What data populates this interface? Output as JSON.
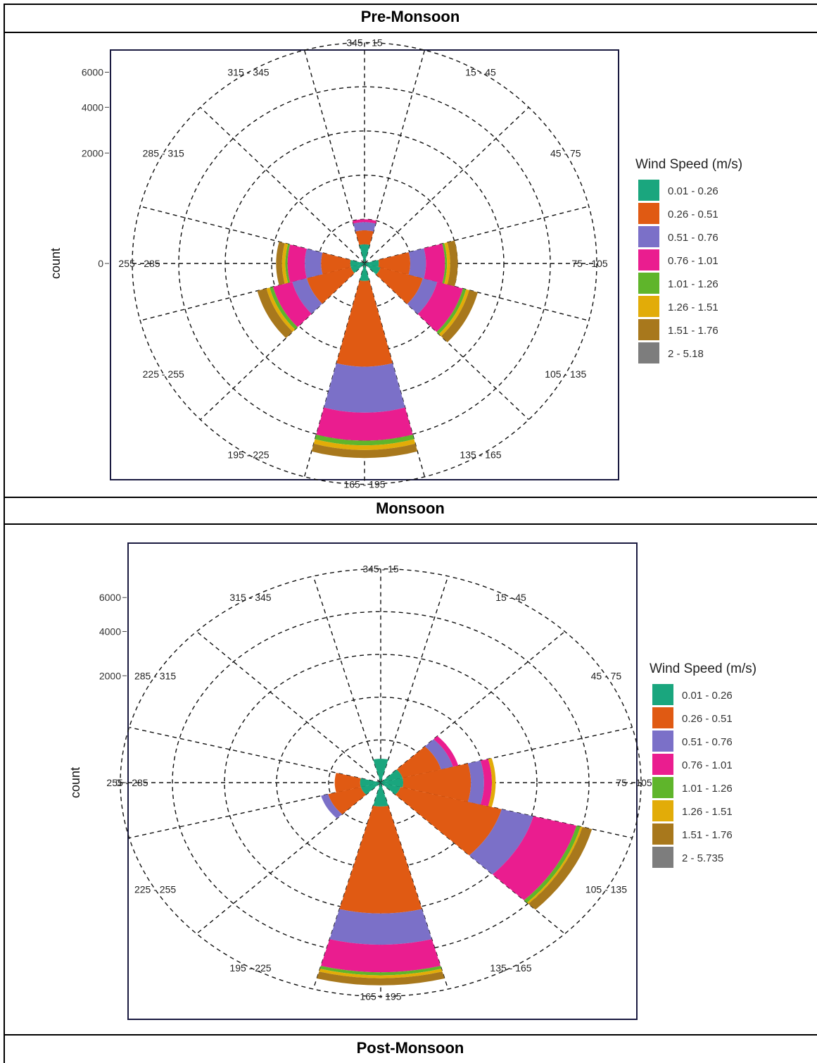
{
  "sections": [
    {
      "title": "Pre-Monsoon"
    },
    {
      "title": "Monsoon"
    },
    {
      "title": "Post-Monsoon"
    }
  ],
  "bin_colors": [
    "#1aa67e",
    "#e05a13",
    "#7b70c8",
    "#ea1d8f",
    "#5fb52b",
    "#e2ac08",
    "#a8781c",
    "#7d7d7d"
  ],
  "chart_data": [
    {
      "type": "wind-rose",
      "ylabel": "count",
      "y_ticks": [
        "0",
        "2000",
        "4000",
        "6000"
      ],
      "y_tick_values": [
        0,
        2000,
        4000,
        6000
      ],
      "r_max": 8000,
      "direction_labels": [
        "345 - 15",
        "15 - 45",
        "45 - 75",
        "75 - 105",
        "105 - 135",
        "135 - 165",
        "165 - 195",
        "195 - 225",
        "225 - 255",
        "255 - 285",
        "285 - 315",
        "315 - 345"
      ],
      "legend_title": "Wind Speed (m/s)",
      "legend_placement": "right",
      "legend_bins": [
        "0.01 - 0.26",
        "0.26 - 0.51",
        "0.51 - 0.76",
        "0.76 - 1.01",
        "1.01 - 1.26",
        "1.26 - 1.51",
        "1.51 - 1.76",
        "2 - 5.18"
      ],
      "sectors": [
        {
          "direction": "345 - 15",
          "values": [
            60,
            120,
            100,
            40,
            0,
            0,
            0,
            0
          ]
        },
        {
          "direction": "75 - 105",
          "values": [
            30,
            280,
            250,
            400,
            50,
            80,
            200,
            0
          ]
        },
        {
          "direction": "105 - 135",
          "values": [
            40,
            500,
            300,
            700,
            100,
            100,
            300,
            0
          ]
        },
        {
          "direction": "165 - 195",
          "values": [
            50,
            1700,
            1900,
            1500,
            280,
            280,
            500,
            0
          ]
        },
        {
          "direction": "225 - 255",
          "values": [
            30,
            500,
            300,
            500,
            100,
            100,
            300,
            0
          ]
        },
        {
          "direction": "255 - 285",
          "values": [
            30,
            250,
            250,
            350,
            50,
            80,
            150,
            0
          ]
        }
      ]
    },
    {
      "type": "wind-rose",
      "ylabel": "count",
      "y_ticks": [
        "0",
        "2000",
        "4000",
        "6000"
      ],
      "y_tick_values": [
        0,
        2000,
        4000,
        6000
      ],
      "r_max": 8000,
      "direction_labels": [
        "345 - 15",
        "15 - 45",
        "45 - 75",
        "75 - 105",
        "105 - 135",
        "135 - 165",
        "165 - 195",
        "195 - 225",
        "225 - 255",
        "255 - 285",
        "285 - 315",
        "315 - 345"
      ],
      "legend_title": "Wind Speed (m/s)",
      "legend_placement": "right",
      "legend_bins": [
        "0.01 - 0.26",
        "0.26 - 0.51",
        "0.51 - 0.76",
        "0.76 - 1.01",
        "1.01 - 1.26",
        "1.26 - 1.51",
        "1.51 - 1.76",
        "2 - 5.735"
      ],
      "sectors": [
        {
          "direction": "345 - 15",
          "values": [
            100,
            0,
            0,
            0,
            0,
            0,
            0,
            0
          ]
        },
        {
          "direction": "45 - 75",
          "values": [
            60,
            400,
            200,
            100,
            0,
            0,
            0,
            0
          ]
        },
        {
          "direction": "75 - 105",
          "values": [
            60,
            900,
            300,
            200,
            0,
            100,
            0,
            0
          ]
        },
        {
          "direction": "105 - 135",
          "values": [
            50,
            1800,
            1100,
            1900,
            200,
            100,
            500,
            0
          ]
        },
        {
          "direction": "165 - 195",
          "values": [
            100,
            2900,
            1600,
            1700,
            200,
            200,
            500,
            0
          ]
        },
        {
          "direction": "225 - 255",
          "values": [
            50,
            300,
            100,
            0,
            0,
            0,
            0,
            0
          ]
        },
        {
          "direction": "255 - 285",
          "values": [
            50,
            200,
            0,
            0,
            0,
            0,
            0,
            0
          ]
        }
      ]
    }
  ]
}
